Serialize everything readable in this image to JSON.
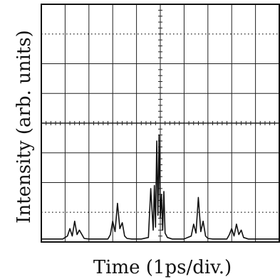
{
  "chart_data": {
    "type": "line",
    "xlabel": "Time (1ps/div.)",
    "ylabel": "Intensity (arb. units)",
    "x_divisions": 10,
    "y_divisions": 8,
    "xlim": [
      0,
      10
    ],
    "ylim": [
      0,
      8
    ],
    "grid": true,
    "series": [
      {
        "x": [
          0.0,
          0.9,
          1.1,
          1.2,
          1.3,
          1.4,
          1.5,
          1.6,
          1.8,
          2.0,
          2.8,
          2.9,
          3.0,
          3.1,
          3.2,
          3.3,
          3.4,
          3.5,
          3.6,
          3.8,
          4.2,
          4.5,
          4.6,
          4.7,
          4.75,
          4.8,
          4.85,
          4.9,
          4.95,
          5.0,
          5.05,
          5.1,
          5.15,
          5.2,
          5.3,
          5.5,
          6.0,
          6.3,
          6.4,
          6.5,
          6.6,
          6.7,
          6.8,
          6.9,
          7.0,
          7.2,
          7.8,
          7.9,
          8.0,
          8.1,
          8.2,
          8.3,
          8.4,
          8.5,
          8.7,
          10.0
        ],
        "y": [
          0.1,
          0.1,
          0.2,
          0.45,
          0.2,
          0.7,
          0.25,
          0.4,
          0.12,
          0.1,
          0.1,
          0.25,
          0.7,
          0.35,
          1.3,
          0.45,
          0.65,
          0.2,
          0.12,
          0.1,
          0.1,
          0.15,
          1.8,
          0.4,
          1.9,
          0.5,
          3.4,
          0.9,
          3.6,
          0.8,
          1.6,
          0.4,
          1.7,
          0.3,
          0.15,
          0.1,
          0.1,
          0.2,
          0.6,
          0.3,
          1.5,
          0.35,
          0.7,
          0.2,
          0.12,
          0.1,
          0.1,
          0.25,
          0.45,
          0.2,
          0.6,
          0.25,
          0.4,
          0.15,
          0.1,
          0.1
        ]
      }
    ]
  }
}
